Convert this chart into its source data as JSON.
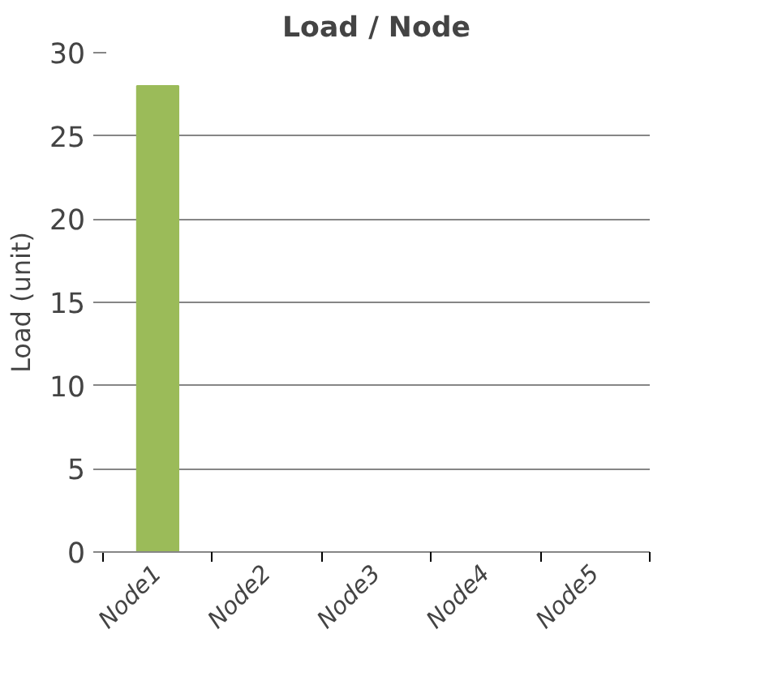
{
  "chart_data": {
    "type": "bar",
    "title": "Load / Node",
    "ylabel": "Load (unit)",
    "categories": [
      "Node1",
      "Node2",
      "Node3",
      "Node4",
      "Node5"
    ],
    "values": [
      28,
      0,
      0,
      0,
      0
    ],
    "color": "#9bbb59",
    "ylim": [
      0,
      30
    ],
    "yticks": [
      0,
      5,
      10,
      15,
      20,
      25,
      30
    ],
    "grid": "y"
  }
}
